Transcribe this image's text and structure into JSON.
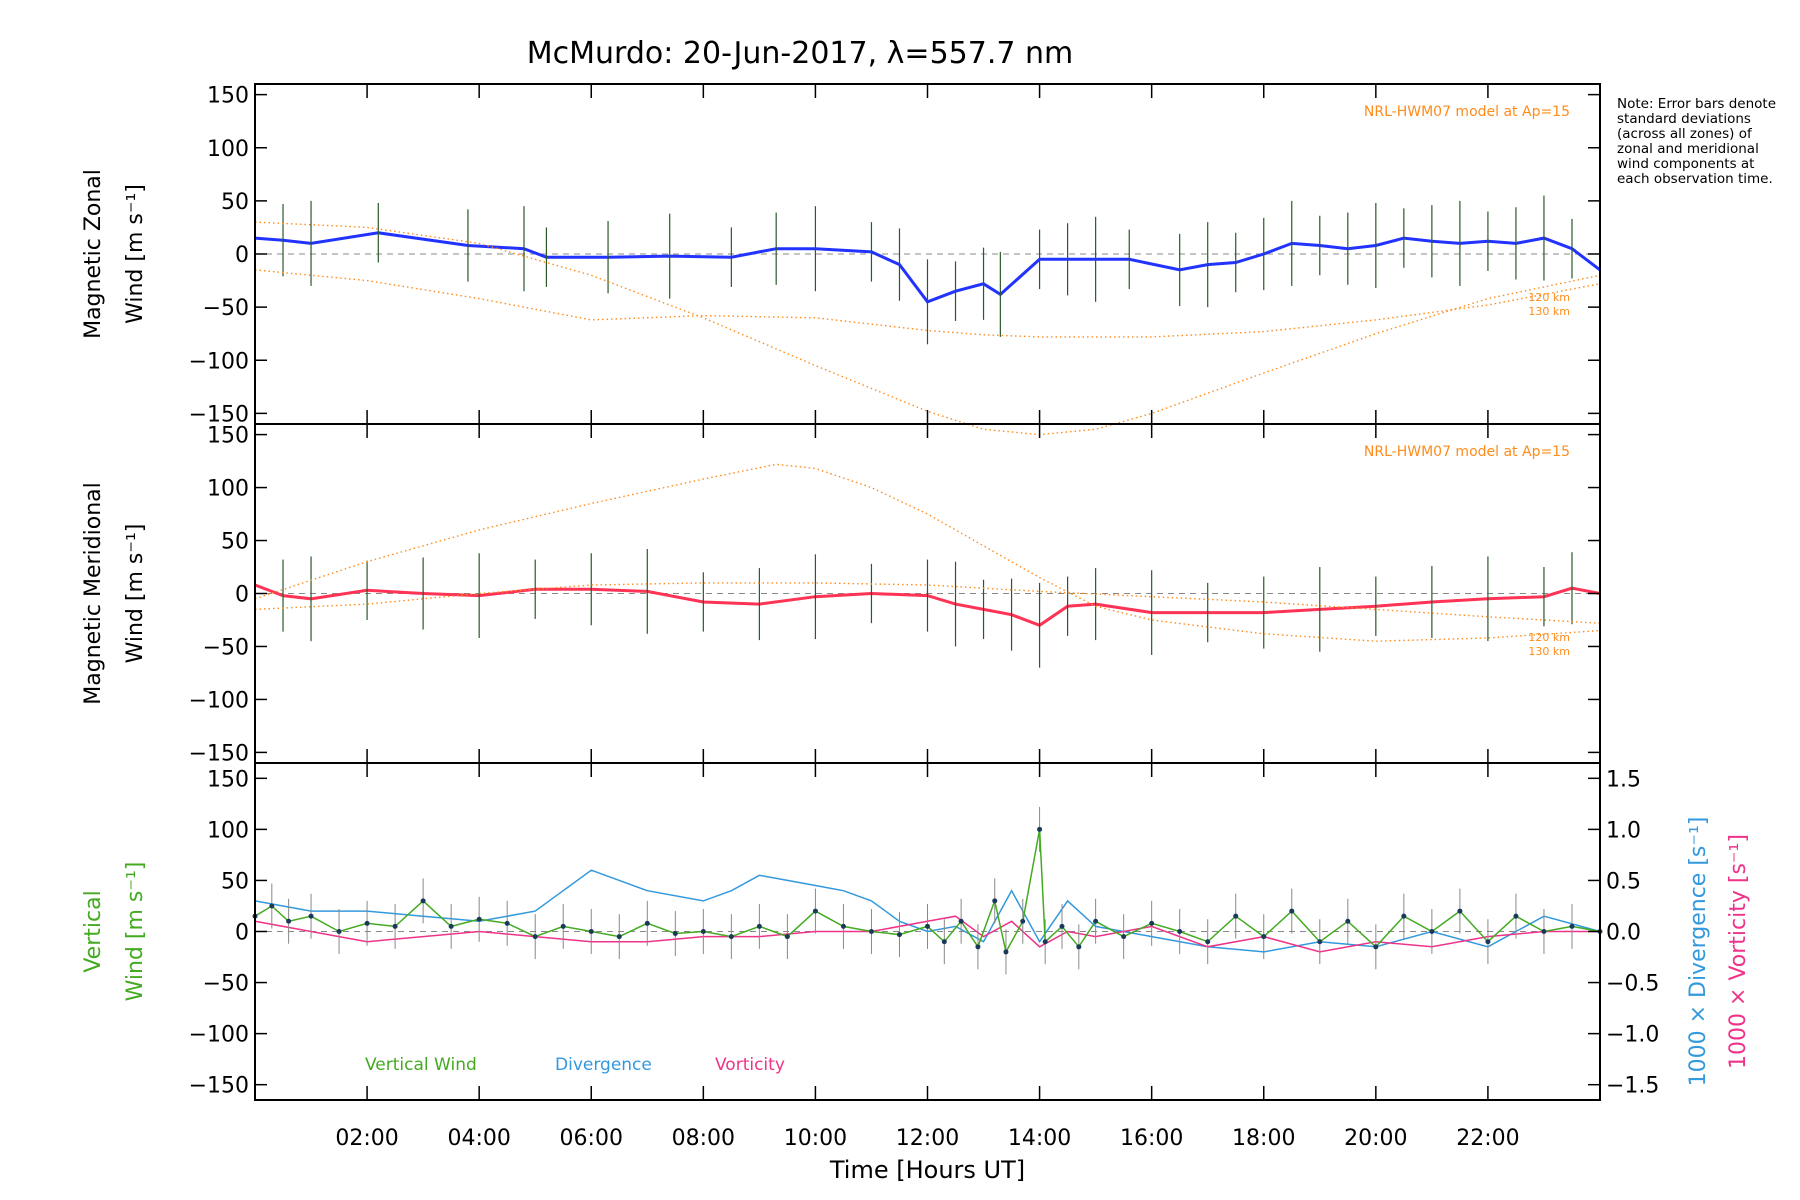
{
  "chart_data": {
    "type": "line",
    "title": "McMurdo: 20-Jun-2017, λ=557.7 nm",
    "note": "Note: Error bars denote standard deviations (across all zones) of zonal and meridional wind components at each observation time.",
    "xlabel": "Time [Hours UT]",
    "xlim": [
      0.0,
      24.0
    ],
    "x_ticks": [
      "02:00",
      "04:00",
      "06:00",
      "08:00",
      "10:00",
      "12:00",
      "14:00",
      "16:00",
      "18:00",
      "20:00",
      "22:00"
    ],
    "y_ticks": [
      "150",
      "100",
      "50",
      "0",
      "−50",
      "−100",
      "−150"
    ],
    "panels": [
      {
        "id": "zonal",
        "ylabel_line1": "Magnetic Zonal",
        "ylabel_line2": "Wind [m s⁻¹]",
        "ylim": [
          -160,
          160
        ],
        "model_label": "NRL-HWM07 model at Ap=15",
        "model_curve_labels": [
          "120 km",
          "130 km"
        ],
        "series": [
          {
            "name": "Zonal wind (mean)",
            "color": "#2233ff",
            "x": [
              0.0,
              0.5,
              1.0,
              2.2,
              3.8,
              4.8,
              5.2,
              6.3,
              7.4,
              8.5,
              9.3,
              10.0,
              11.0,
              11.5,
              12.0,
              12.5,
              13.0,
              13.3,
              14.0,
              14.5,
              15.0,
              15.6,
              16.5,
              17.0,
              17.5,
              18.0,
              18.5,
              19.0,
              19.5,
              20.0,
              20.5,
              21.0,
              21.5,
              22.0,
              22.5,
              23.0,
              23.5,
              24.0
            ],
            "y": [
              15,
              13,
              10,
              20,
              8,
              5,
              -3,
              -3,
              -2,
              -3,
              5,
              5,
              2,
              -10,
              -45,
              -35,
              -28,
              -38,
              -5,
              -5,
              -5,
              -5,
              -15,
              -10,
              -8,
              0,
              10,
              8,
              5,
              8,
              15,
              12,
              10,
              12,
              10,
              15,
              5,
              -15
            ]
          },
          {
            "name": "NRL-HWM07 120 km",
            "color": "#ff8c1a",
            "dotted": true,
            "x": [
              0,
              2,
              4,
              6,
              8,
              10,
              12,
              13,
              14,
              16,
              18,
              20,
              22,
              24
            ],
            "y": [
              -15,
              -25,
              -42,
              -62,
              -58,
              -60,
              -72,
              -76,
              -78,
              -78,
              -73,
              -62,
              -48,
              -28
            ]
          },
          {
            "name": "NRL-HWM07 130 km",
            "color": "#ff8c1a",
            "dotted": true,
            "x": [
              0,
              2,
              4,
              6,
              8,
              10,
              12,
              13,
              14,
              15,
              16,
              18,
              20,
              22,
              24
            ],
            "y": [
              30,
              25,
              10,
              -20,
              -60,
              -105,
              -148,
              -165,
              -170,
              -165,
              -150,
              -112,
              -75,
              -42,
              -20
            ]
          }
        ]
      },
      {
        "id": "meridional",
        "ylabel_line1": "Magnetic Meridional",
        "ylabel_line2": "Wind [m s⁻¹]",
        "ylim": [
          -160,
          160
        ],
        "model_label": "NRL-HWM07 model at Ap=15",
        "model_curve_labels": [
          "120 km",
          "130 km"
        ],
        "series": [
          {
            "name": "Meridional wind (mean)",
            "color": "#ff3355",
            "x": [
              0.0,
              0.5,
              1.0,
              2.0,
              3.0,
              4.0,
              5.0,
              6.0,
              7.0,
              8.0,
              9.0,
              10.0,
              11.0,
              12.0,
              12.5,
              13.0,
              13.5,
              14.0,
              14.5,
              15.0,
              16.0,
              17.0,
              18.0,
              19.0,
              20.0,
              21.0,
              22.0,
              23.0,
              23.5,
              24.0
            ],
            "y": [
              8,
              -2,
              -5,
              3,
              0,
              -2,
              4,
              4,
              2,
              -8,
              -10,
              -3,
              0,
              -2,
              -10,
              -15,
              -20,
              -30,
              -12,
              -10,
              -18,
              -18,
              -18,
              -15,
              -12,
              -8,
              -5,
              -3,
              5,
              0
            ]
          },
          {
            "name": "NRL-HWM07 120 km",
            "color": "#ff8c1a",
            "dotted": true,
            "x": [
              0,
              2,
              4,
              6,
              8,
              10,
              12,
              14,
              16,
              18,
              20,
              22,
              24
            ],
            "y": [
              -15,
              -10,
              0,
              8,
              10,
              10,
              8,
              2,
              -3,
              -8,
              -15,
              -22,
              -28
            ]
          },
          {
            "name": "NRL-HWM07 130 km",
            "color": "#ff8c1a",
            "dotted": true,
            "x": [
              0,
              2,
              4,
              6,
              8,
              9.3,
              10,
              11,
              12,
              13,
              14,
              15,
              16,
              18,
              20,
              22,
              24
            ],
            "y": [
              -5,
              30,
              60,
              85,
              108,
              122,
              118,
              100,
              75,
              45,
              15,
              -12,
              -25,
              -38,
              -45,
              -42,
              -35
            ]
          }
        ]
      },
      {
        "id": "vertical",
        "ylabel_line1": "Vertical",
        "ylabel_line2": "Wind [m s⁻¹]",
        "ylim": [
          -165,
          165
        ],
        "y2lim": [
          -1.65,
          1.65
        ],
        "y2_ticks": [
          "1.5",
          "1.0",
          "0.5",
          "0.0",
          "−0.5",
          "−1.0",
          "−1.5"
        ],
        "y2label_divergence": "1000 × Divergence [s⁻¹]",
        "y2label_vorticity": "1000 × Vorticity [s⁻¹]",
        "legend": [
          "Vertical Wind",
          "Divergence",
          "Vorticity"
        ],
        "series": [
          {
            "name": "Vertical Wind",
            "color": "#44aa22",
            "axis": "left",
            "x": [
              0.0,
              0.3,
              0.6,
              1.0,
              1.5,
              2.0,
              2.5,
              3.0,
              3.5,
              4.0,
              4.5,
              5.0,
              5.5,
              6.0,
              6.5,
              7.0,
              7.5,
              8.0,
              8.5,
              9.0,
              9.5,
              10.0,
              10.5,
              11.0,
              11.5,
              12.0,
              12.3,
              12.6,
              12.9,
              13.2,
              13.4,
              13.7,
              14.0,
              14.1,
              14.4,
              14.7,
              15.0,
              15.5,
              16.0,
              16.5,
              17.0,
              17.5,
              18.0,
              18.5,
              19.0,
              19.5,
              20.0,
              20.5,
              21.0,
              21.5,
              22.0,
              22.5,
              23.0,
              23.5,
              24.0
            ],
            "y": [
              15,
              25,
              10,
              15,
              0,
              8,
              5,
              30,
              5,
              12,
              8,
              -5,
              5,
              0,
              -5,
              8,
              -2,
              0,
              -5,
              5,
              -5,
              20,
              5,
              0,
              -3,
              5,
              -10,
              10,
              -15,
              30,
              -20,
              10,
              100,
              -10,
              5,
              -15,
              10,
              -5,
              8,
              0,
              -10,
              15,
              -5,
              20,
              -10,
              10,
              -15,
              15,
              0,
              20,
              -10,
              15,
              0,
              5,
              0
            ]
          },
          {
            "name": "Divergence",
            "color": "#3399dd",
            "axis": "right",
            "x": [
              0,
              0.5,
              1,
              2,
              3,
              4,
              5,
              5.5,
              6,
              6.5,
              7,
              8,
              8.5,
              9,
              9.5,
              10,
              10.5,
              11,
              11.5,
              12,
              12.5,
              13,
              13.3,
              13.5,
              14,
              14.5,
              15,
              16,
              17,
              18,
              19,
              20,
              21,
              22,
              23,
              24
            ],
            "y": [
              0.3,
              0.25,
              0.2,
              0.2,
              0.15,
              0.1,
              0.2,
              0.4,
              0.6,
              0.5,
              0.4,
              0.3,
              0.4,
              0.55,
              0.5,
              0.45,
              0.4,
              0.3,
              0.1,
              0.0,
              0.05,
              -0.1,
              0.2,
              0.4,
              -0.1,
              0.3,
              0.05,
              -0.05,
              -0.15,
              -0.2,
              -0.1,
              -0.15,
              0.0,
              -0.15,
              0.15,
              0.0
            ]
          },
          {
            "name": "Vorticity",
            "color": "#ee3388",
            "axis": "right",
            "x": [
              0,
              0.5,
              1,
              2,
              3,
              4,
              5,
              6,
              7,
              8,
              9,
              10,
              11,
              12,
              12.5,
              13,
              13.5,
              14,
              14.5,
              15,
              16,
              17,
              18,
              19,
              20,
              21,
              22,
              23,
              24
            ],
            "y": [
              0.1,
              0.05,
              0.0,
              -0.1,
              -0.05,
              0.0,
              -0.05,
              -0.1,
              -0.1,
              -0.05,
              -0.05,
              0.0,
              0.0,
              0.1,
              0.15,
              -0.05,
              0.1,
              -0.15,
              0.0,
              -0.05,
              0.05,
              -0.15,
              -0.05,
              -0.2,
              -0.1,
              -0.15,
              -0.05,
              0.0,
              0.0
            ]
          }
        ]
      }
    ]
  }
}
